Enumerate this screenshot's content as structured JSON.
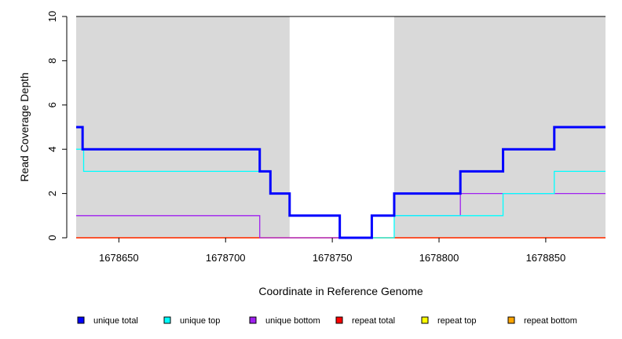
{
  "chart_data": {
    "type": "line",
    "step": true,
    "xlabel": "Coordinate in Reference Genome",
    "ylabel": "Read Coverage Depth",
    "xlim": [
      1678630,
      1678878
    ],
    "ylim": [
      0,
      10
    ],
    "xticks": [
      1678650,
      1678700,
      1678750,
      1678800,
      1678850
    ],
    "yticks": [
      0,
      2,
      4,
      6,
      8,
      10
    ],
    "shaded_regions": [
      [
        1678630,
        1678730
      ],
      [
        1678779,
        1678878
      ]
    ],
    "shade_color": "#d9d9d9",
    "legend_position": "bottom",
    "series": [
      {
        "name": "unique total",
        "color": "#0000ff",
        "steps": [
          [
            1678630,
            5
          ],
          [
            1678633,
            4
          ],
          [
            1678716,
            3
          ],
          [
            1678721,
            2
          ],
          [
            1678730,
            1
          ],
          [
            1678753.5,
            0
          ],
          [
            1678768.5,
            1
          ],
          [
            1678779,
            2
          ],
          [
            1678810,
            3
          ],
          [
            1678830,
            4
          ],
          [
            1678854,
            5
          ]
        ]
      },
      {
        "name": "unique top",
        "color": "#00ffff",
        "steps": [
          [
            1678630,
            4
          ],
          [
            1678633.5,
            3
          ],
          [
            1678721,
            2
          ],
          [
            1678730,
            1
          ],
          [
            1678753.5,
            0
          ],
          [
            1678779,
            1
          ],
          [
            1678830,
            2
          ],
          [
            1678854,
            3
          ]
        ]
      },
      {
        "name": "unique bottom",
        "color": "#a020f0",
        "steps": [
          [
            1678630,
            1
          ],
          [
            1678716,
            0
          ],
          [
            1678768.5,
            1
          ],
          [
            1678810,
            2
          ]
        ]
      },
      {
        "name": "repeat total",
        "color": "#ff0000",
        "steps": [
          [
            1678630,
            0
          ]
        ]
      },
      {
        "name": "repeat top",
        "color": "#ffff00",
        "steps": [
          [
            1678630,
            0
          ]
        ]
      },
      {
        "name": "repeat bottom",
        "color": "#ffa500",
        "steps": [
          [
            1678630,
            0
          ]
        ]
      }
    ]
  }
}
